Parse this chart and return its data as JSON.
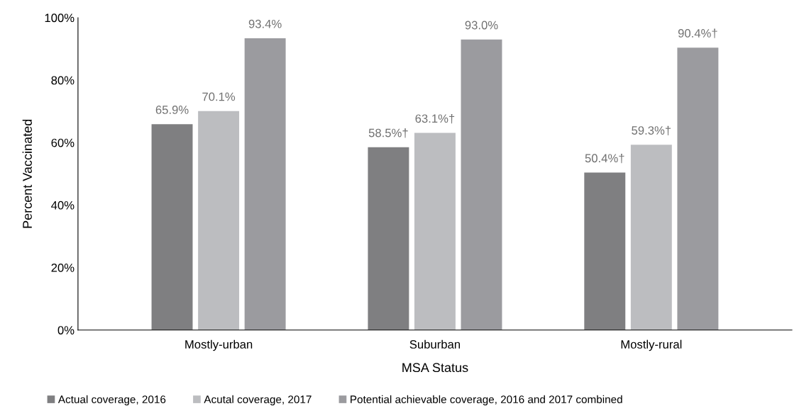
{
  "chart_data": {
    "type": "bar",
    "xlabel": "MSA Status",
    "ylabel": "Percent Vaccinated",
    "categories": [
      "Mostly-urban",
      "Suburban",
      "Mostly-rural"
    ],
    "series": [
      {
        "name": "Actual coverage, 2016",
        "color": "#7f7f81",
        "values": [
          65.9,
          58.5,
          50.4
        ],
        "value_labels": [
          "65.9%",
          "58.5%†",
          "50.4%†"
        ]
      },
      {
        "name": "Acutal coverage, 2017",
        "color": "#bcbdc0",
        "values": [
          70.1,
          63.1,
          59.3
        ],
        "value_labels": [
          "70.1%",
          "63.1%†",
          "59.3%†"
        ]
      },
      {
        "name": "Potential achievable coverage, 2016 and 2017 combined",
        "color": "#9b9b9f",
        "values": [
          93.4,
          93.0,
          90.4
        ],
        "value_labels": [
          "93.4%",
          "93.0%",
          "90.4%†"
        ]
      }
    ],
    "ylim": [
      0,
      100
    ],
    "yticks": [
      {
        "value": 0,
        "label": "0%"
      },
      {
        "value": 20,
        "label": "20%"
      },
      {
        "value": 40,
        "label": "40%"
      },
      {
        "value": 60,
        "label": "60%"
      },
      {
        "value": 80,
        "label": "80%"
      },
      {
        "value": 100,
        "label": "100%"
      }
    ],
    "grid": false,
    "legend": "bottom"
  }
}
